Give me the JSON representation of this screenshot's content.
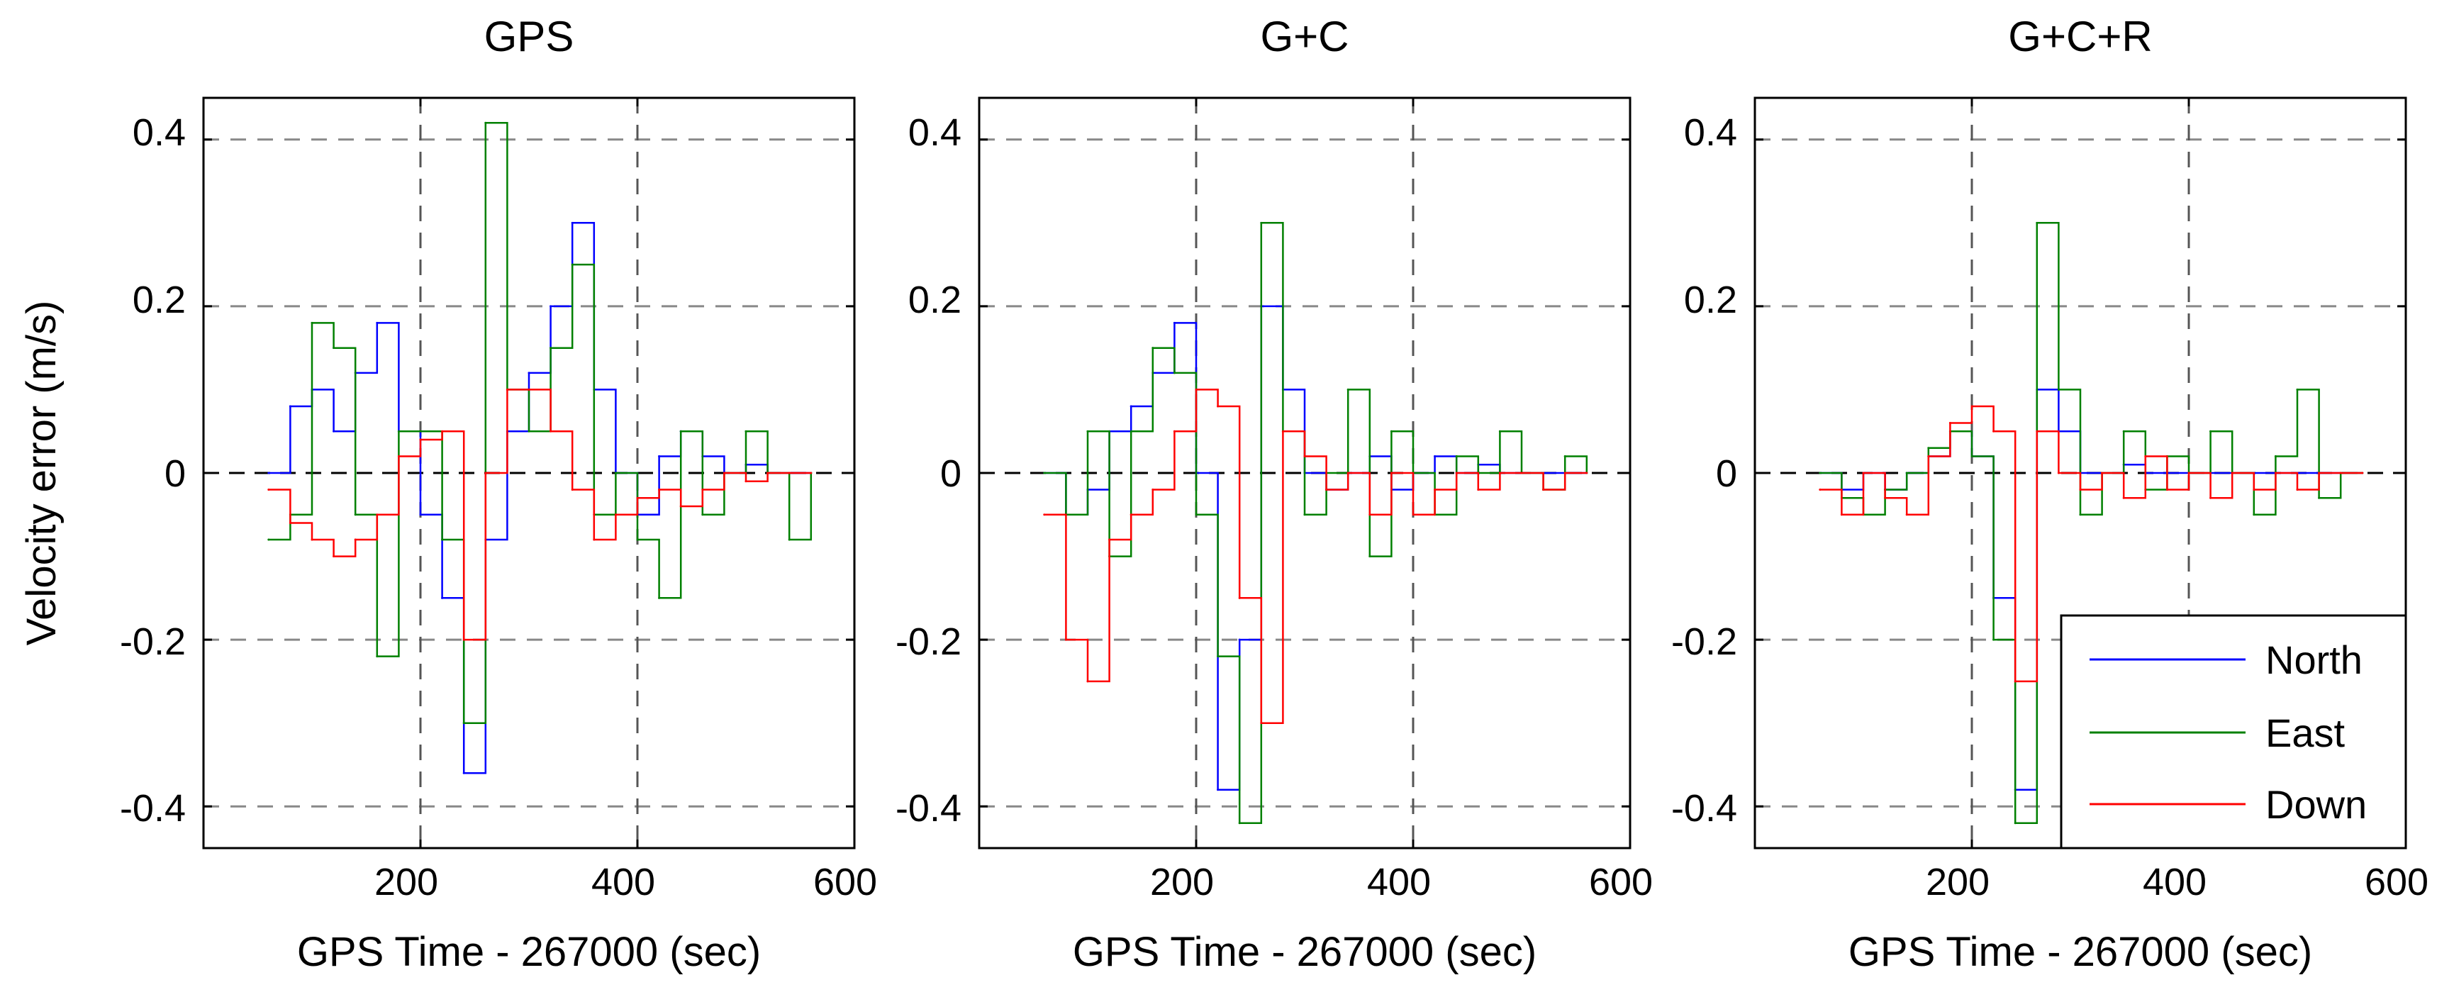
{
  "chart_data": [
    {
      "type": "line",
      "title": "GPS",
      "xlabel": "GPS Time - 267000 (sec)",
      "ylabel": "Velocity error (m/s)",
      "xlim": [
        0,
        600
      ],
      "ylim": [
        -0.45,
        0.45
      ],
      "xticks": [
        200,
        400,
        600
      ],
      "yticks": [
        -0.4,
        -0.2,
        0,
        0.2,
        0.4
      ],
      "xtick_labels": [
        "200",
        "400",
        "600"
      ],
      "ytick_labels": [
        "-0.4",
        "-0.2",
        "0",
        "0.2",
        "0.4"
      ],
      "grid": true,
      "x": [
        60,
        80,
        100,
        120,
        140,
        160,
        180,
        200,
        220,
        240,
        260,
        280,
        300,
        320,
        340,
        360,
        380,
        400,
        420,
        440,
        460,
        480,
        500,
        520,
        540,
        560
      ],
      "series": [
        {
          "name": "North",
          "color": "#0000ff",
          "values": [
            0.0,
            0.08,
            0.1,
            0.05,
            0.12,
            0.18,
            0.05,
            -0.05,
            -0.15,
            -0.36,
            -0.08,
            0.05,
            0.12,
            0.2,
            0.3,
            0.1,
            0.0,
            -0.05,
            0.02,
            0.05,
            0.02,
            0.0,
            0.01,
            0.0,
            0.0,
            0.0
          ]
        },
        {
          "name": "East",
          "color": "#008000",
          "values": [
            -0.08,
            -0.05,
            0.18,
            0.15,
            -0.05,
            -0.22,
            0.05,
            0.05,
            -0.08,
            -0.3,
            0.42,
            0.1,
            0.05,
            0.15,
            0.25,
            -0.05,
            0.0,
            -0.08,
            -0.15,
            0.05,
            -0.05,
            0.0,
            0.05,
            0.0,
            -0.08,
            0.0
          ]
        },
        {
          "name": "Down",
          "color": "#ff0000",
          "values": [
            -0.02,
            -0.06,
            -0.08,
            -0.1,
            -0.08,
            -0.05,
            0.02,
            0.04,
            0.05,
            -0.2,
            0.0,
            0.1,
            0.1,
            0.05,
            -0.02,
            -0.08,
            -0.05,
            -0.03,
            -0.02,
            -0.04,
            -0.02,
            0.0,
            -0.01,
            0.0,
            0.0,
            0.0
          ]
        }
      ]
    },
    {
      "type": "line",
      "title": "G+C",
      "xlabel": "GPS Time - 267000 (sec)",
      "ylabel": "",
      "xlim": [
        0,
        600
      ],
      "ylim": [
        -0.45,
        0.45
      ],
      "xticks": [
        200,
        400,
        600
      ],
      "yticks": [
        -0.4,
        -0.2,
        0,
        0.2,
        0.4
      ],
      "xtick_labels": [
        "200",
        "400",
        "600"
      ],
      "ytick_labels": [
        "-0.4",
        "-0.2",
        "0",
        "0.2",
        "0.4"
      ],
      "grid": true,
      "x": [
        60,
        80,
        100,
        120,
        140,
        160,
        180,
        200,
        220,
        240,
        260,
        280,
        300,
        320,
        340,
        360,
        380,
        400,
        420,
        440,
        460,
        480,
        500,
        520,
        540,
        560
      ],
      "series": [
        {
          "name": "North",
          "color": "#0000ff",
          "values": [
            0.0,
            -0.05,
            -0.02,
            0.05,
            0.08,
            0.12,
            0.18,
            0.0,
            -0.38,
            -0.2,
            0.2,
            0.1,
            0.0,
            -0.02,
            0.0,
            0.02,
            -0.02,
            0.0,
            0.02,
            0.0,
            0.01,
            0.0,
            0.0,
            0.0,
            0.0,
            0.0
          ]
        },
        {
          "name": "East",
          "color": "#008000",
          "values": [
            0.0,
            -0.05,
            0.05,
            -0.1,
            0.05,
            0.15,
            0.12,
            -0.05,
            -0.22,
            -0.42,
            0.3,
            0.05,
            -0.05,
            0.0,
            0.1,
            -0.1,
            0.05,
            0.0,
            -0.05,
            0.02,
            0.0,
            0.05,
            0.0,
            -0.02,
            0.02,
            0.0
          ]
        },
        {
          "name": "Down",
          "color": "#ff0000",
          "values": [
            -0.05,
            -0.2,
            -0.25,
            -0.08,
            -0.05,
            -0.02,
            0.05,
            0.1,
            0.08,
            -0.15,
            -0.3,
            0.05,
            0.02,
            -0.02,
            0.0,
            -0.05,
            0.0,
            -0.05,
            -0.02,
            0.0,
            -0.02,
            0.0,
            0.0,
            -0.02,
            0.0,
            0.0
          ]
        }
      ]
    },
    {
      "type": "line",
      "title": "G+C+R",
      "xlabel": "GPS Time - 267000 (sec)",
      "ylabel": "",
      "xlim": [
        0,
        600
      ],
      "ylim": [
        -0.45,
        0.45
      ],
      "xticks": [
        200,
        400,
        600
      ],
      "yticks": [
        -0.4,
        -0.2,
        0,
        0.2,
        0.4
      ],
      "xtick_labels": [
        "200",
        "400",
        "600"
      ],
      "ytick_labels": [
        "-0.4",
        "-0.2",
        "0",
        "0.2",
        "0.4"
      ],
      "grid": true,
      "legend_position": "bottom-right",
      "x": [
        60,
        80,
        100,
        120,
        140,
        160,
        180,
        200,
        220,
        240,
        260,
        280,
        300,
        320,
        340,
        360,
        380,
        400,
        420,
        440,
        460,
        480,
        500,
        520,
        540,
        560
      ],
      "series": [
        {
          "name": "North",
          "color": "#0000ff",
          "values": [
            0.0,
            -0.02,
            0.0,
            -0.02,
            0.0,
            0.02,
            0.05,
            0.02,
            -0.15,
            -0.38,
            0.1,
            0.05,
            0.0,
            0.0,
            0.01,
            0.0,
            0.0,
            0.0,
            0.0,
            0.0,
            0.0,
            0.0,
            0.0,
            0.0,
            0.0,
            0.0
          ]
        },
        {
          "name": "East",
          "color": "#008000",
          "values": [
            0.0,
            -0.03,
            -0.05,
            -0.02,
            0.0,
            0.03,
            0.05,
            0.02,
            -0.2,
            -0.42,
            0.3,
            0.1,
            -0.05,
            0.0,
            0.05,
            -0.02,
            0.02,
            0.0,
            0.05,
            0.0,
            -0.05,
            0.02,
            0.1,
            -0.03,
            0.0,
            0.0
          ]
        },
        {
          "name": "Down",
          "color": "#ff0000",
          "values": [
            -0.02,
            -0.05,
            0.0,
            -0.03,
            -0.05,
            0.02,
            0.06,
            0.08,
            0.05,
            -0.25,
            0.05,
            0.0,
            -0.02,
            0.0,
            -0.03,
            0.02,
            -0.02,
            0.0,
            -0.03,
            0.0,
            -0.02,
            0.0,
            -0.02,
            0.0,
            0.0,
            0.0
          ]
        }
      ]
    }
  ],
  "legend": {
    "north": "North",
    "east": "East",
    "down": "Down"
  }
}
